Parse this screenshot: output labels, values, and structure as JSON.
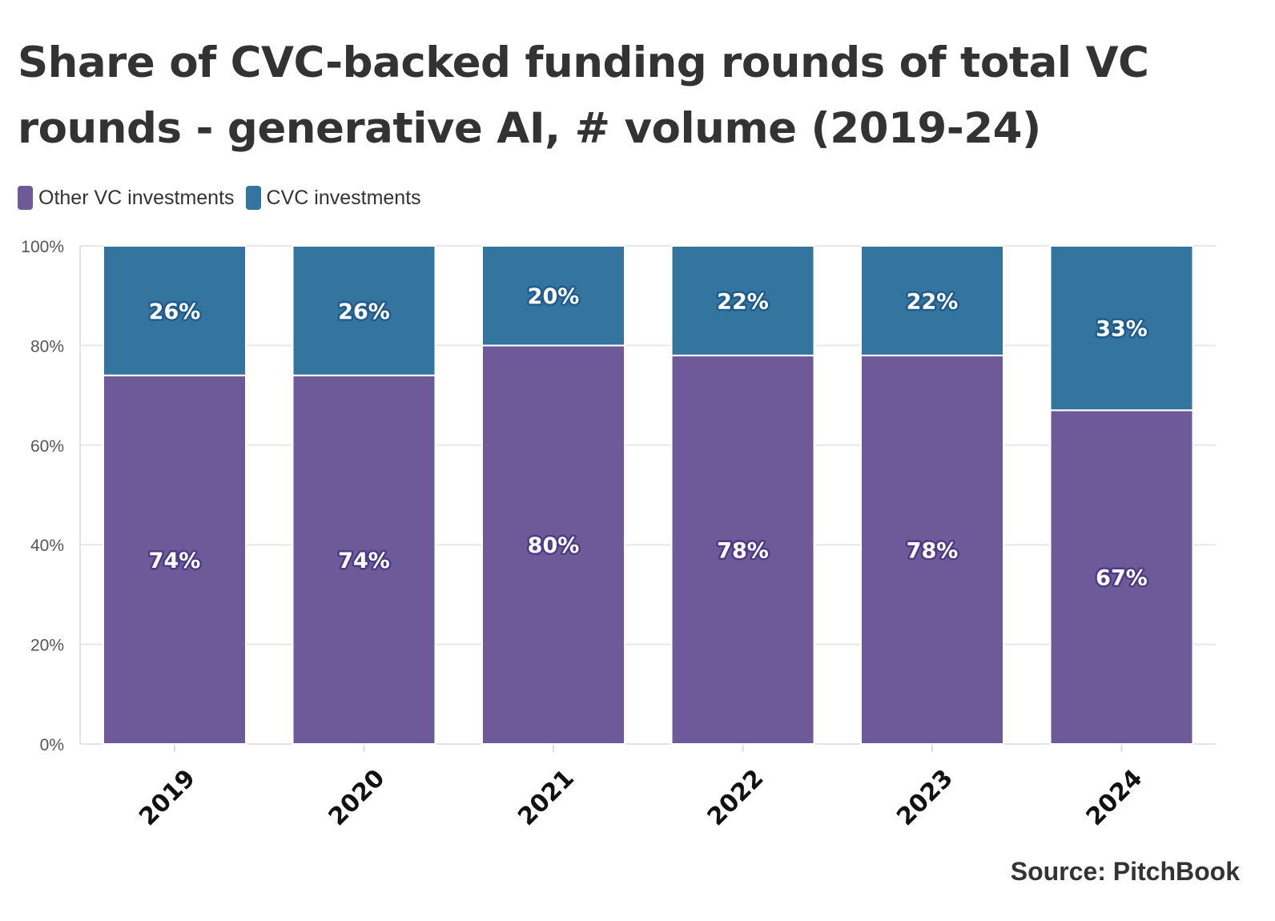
{
  "chart_data": {
    "type": "bar",
    "stacked": true,
    "title": "Share of CVC-backed funding rounds of total VC rounds - generative AI, # volume (2019-24)",
    "categories": [
      "2019",
      "2020",
      "2021",
      "2022",
      "2023",
      "2024"
    ],
    "series": [
      {
        "name": "Other VC investments",
        "values": [
          74,
          74,
          80,
          78,
          78,
          67
        ],
        "color": "#6f5a99",
        "label_stroke": "#4f3a85"
      },
      {
        "name": "CVC investments",
        "values": [
          26,
          26,
          20,
          22,
          22,
          33
        ],
        "color": "#33759f",
        "label_stroke": "#1f5c8c"
      }
    ],
    "ylim": [
      0,
      100
    ],
    "yticks": [
      "0%",
      "20%",
      "40%",
      "60%",
      "80%",
      "100%"
    ],
    "ytick_values": [
      0,
      20,
      40,
      60,
      80,
      100
    ],
    "value_suffix": "%",
    "grid": true,
    "legend_position": "top-left",
    "source": "Source: PitchBook"
  }
}
